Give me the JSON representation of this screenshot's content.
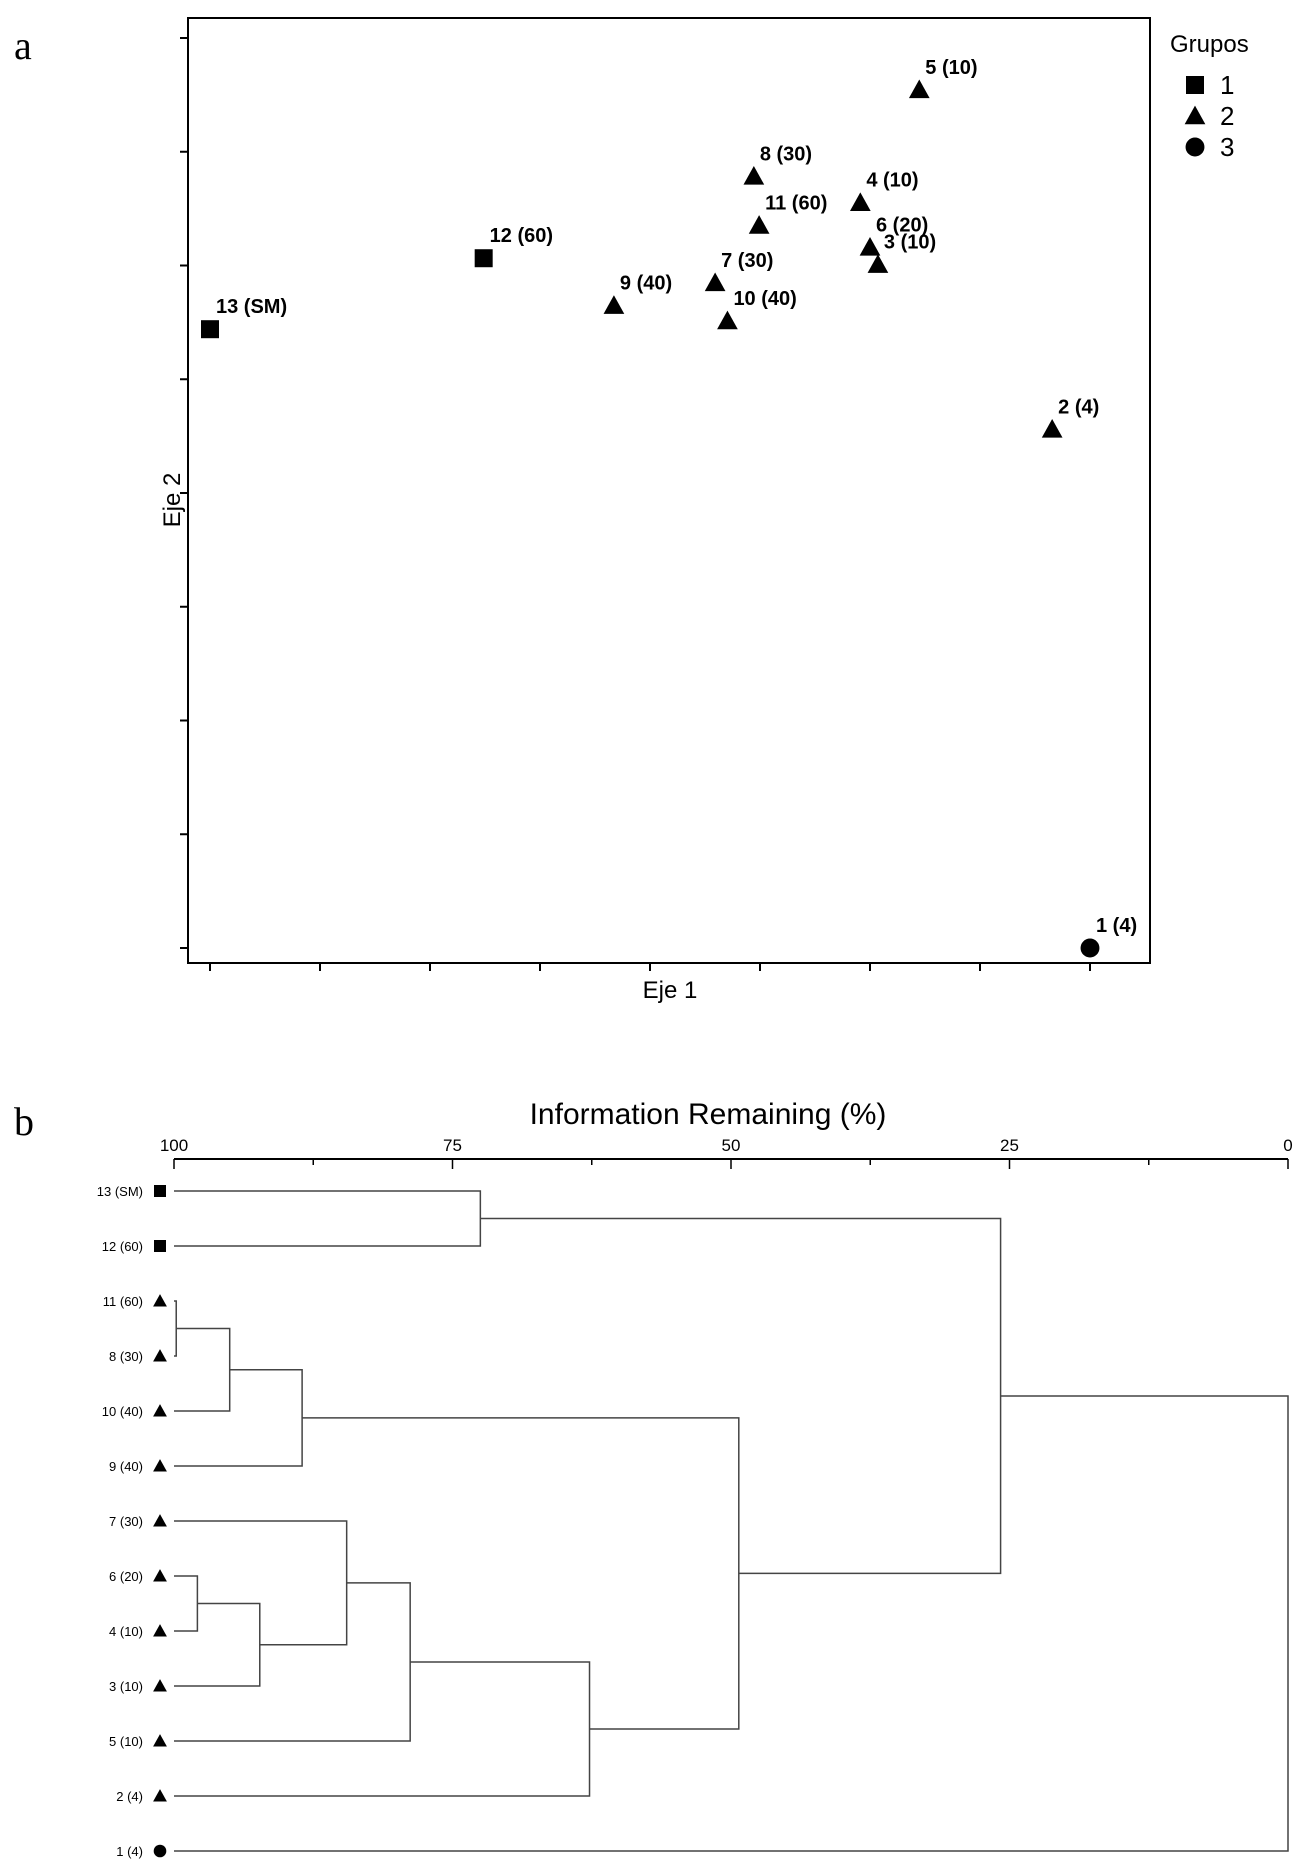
{
  "panels": {
    "a": "a",
    "b": "b"
  },
  "chart_data": [
    {
      "type": "scatter",
      "panel": "a",
      "xlabel": "Eje 1",
      "ylabel": "Eje 2",
      "xlim": [
        0,
        100
      ],
      "ylim": [
        0,
        100
      ],
      "tick_labels_shown": false,
      "legend": {
        "title": "Grupos",
        "placement": "right",
        "entries": [
          {
            "label": "1",
            "marker": "square"
          },
          {
            "label": "2",
            "marker": "triangle"
          },
          {
            "label": "3",
            "marker": "circle"
          }
        ]
      },
      "points": [
        {
          "label": "1 (4)",
          "x": 100,
          "y": 0,
          "group": "3"
        },
        {
          "label": "2 (4)",
          "x": 95.7,
          "y": 57.0,
          "group": "2"
        },
        {
          "label": "3 (10)",
          "x": 75.9,
          "y": 75.1,
          "group": "2"
        },
        {
          "label": "4 (10)",
          "x": 73.9,
          "y": 81.9,
          "group": "2"
        },
        {
          "label": "5 (10)",
          "x": 80.6,
          "y": 94.3,
          "group": "2"
        },
        {
          "label": "6 (20)",
          "x": 75.0,
          "y": 77.0,
          "group": "2"
        },
        {
          "label": "7 (30)",
          "x": 57.4,
          "y": 73.1,
          "group": "2"
        },
        {
          "label": "8 (30)",
          "x": 61.8,
          "y": 84.8,
          "group": "2"
        },
        {
          "label": "9 (40)",
          "x": 45.9,
          "y": 70.6,
          "group": "2"
        },
        {
          "label": "10 (40)",
          "x": 58.8,
          "y": 68.9,
          "group": "2"
        },
        {
          "label": "11 (60)",
          "x": 62.4,
          "y": 79.4,
          "group": "2"
        },
        {
          "label": "12 (60)",
          "x": 31.1,
          "y": 75.8,
          "group": "1"
        },
        {
          "label": "13 (SM)",
          "x": 0,
          "y": 68.0,
          "group": "1"
        }
      ]
    },
    {
      "type": "dendrogram",
      "panel": "b",
      "title": "Information Remaining (%)",
      "xlim": [
        100,
        0
      ],
      "ticks": [
        100,
        75,
        50,
        25,
        0
      ],
      "leaves": [
        {
          "label": "13 (SM)",
          "group": "1"
        },
        {
          "label": "12 (60)",
          "group": "1"
        },
        {
          "label": "11 (60)",
          "group": "2"
        },
        {
          "label": "8 (30)",
          "group": "2"
        },
        {
          "label": "10 (40)",
          "group": "2"
        },
        {
          "label": "9 (40)",
          "group": "2"
        },
        {
          "label": "7 (30)",
          "group": "2"
        },
        {
          "label": "6 (20)",
          "group": "2"
        },
        {
          "label": "4 (10)",
          "group": "2"
        },
        {
          "label": "3 (10)",
          "group": "2"
        },
        {
          "label": "5 (10)",
          "group": "2"
        },
        {
          "label": "2 (4)",
          "group": "2"
        },
        {
          "label": "1 (4)",
          "group": "3"
        }
      ],
      "merges": [
        {
          "id": "A",
          "children": [
            "13 (SM)",
            "12 (60)"
          ],
          "height": 72.5
        },
        {
          "id": "B",
          "children": [
            "11 (60)",
            "8 (30)"
          ],
          "height": 99.8
        },
        {
          "id": "C",
          "children": [
            "B",
            "10 (40)"
          ],
          "height": 95.0
        },
        {
          "id": "D",
          "children": [
            "C",
            "9 (40)"
          ],
          "height": 88.5
        },
        {
          "id": "E",
          "children": [
            "6 (20)",
            "4 (10)"
          ],
          "height": 97.9
        },
        {
          "id": "F",
          "children": [
            "E",
            "3 (10)"
          ],
          "height": 92.3
        },
        {
          "id": "G",
          "children": [
            "7 (30)",
            "F"
          ],
          "height": 84.5
        },
        {
          "id": "H",
          "children": [
            "G",
            "5 (10)"
          ],
          "height": 78.8
        },
        {
          "id": "I",
          "children": [
            "H",
            "2 (4)"
          ],
          "height": 62.7
        },
        {
          "id": "J",
          "children": [
            "D",
            "I"
          ],
          "height": 49.3
        },
        {
          "id": "K",
          "children": [
            "A",
            "J"
          ],
          "height": 25.8
        },
        {
          "id": "L",
          "children": [
            "K",
            "1 (4)"
          ],
          "height": 0
        }
      ]
    }
  ]
}
